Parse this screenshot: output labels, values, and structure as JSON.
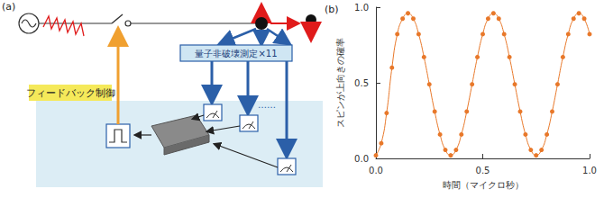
{
  "diagram": {
    "panel_label": "(a)",
    "feedback_label": "フィードバック制御",
    "measurement_label": "量子非破壊測定×11",
    "ellipsis": "……"
  },
  "chart_data": {
    "type": "line",
    "title": "(b)",
    "x_label": "時間（マイクロ秒）",
    "y_label": "スピンが上向きの確率",
    "x": [
      0,
      0.025,
      0.05,
      0.075,
      0.1,
      0.125,
      0.15,
      0.175,
      0.2,
      0.225,
      0.25,
      0.275,
      0.3,
      0.325,
      0.35,
      0.375,
      0.4,
      0.425,
      0.45,
      0.475,
      0.5,
      0.525,
      0.55,
      0.575,
      0.6,
      0.625,
      0.65,
      0.675,
      0.7,
      0.725,
      0.75,
      0.775,
      0.8,
      0.825,
      0.85,
      0.875,
      0.9,
      0.925,
      0.95,
      0.975,
      1
    ],
    "values": [
      0.02,
      0.1,
      0.3,
      0.6,
      0.822,
      0.924,
      0.96,
      0.924,
      0.822,
      0.67,
      0.49,
      0.31,
      0.158,
      0.056,
      0.02,
      0.056,
      0.158,
      0.31,
      0.49,
      0.67,
      0.822,
      0.924,
      0.96,
      0.924,
      0.822,
      0.67,
      0.49,
      0.31,
      0.158,
      0.056,
      0.02,
      0.056,
      0.158,
      0.31,
      0.49,
      0.67,
      0.822,
      0.924,
      0.96,
      0.924,
      0.822
    ],
    "color": "#e8782a",
    "marker": "circle",
    "xlim": [
      0,
      1
    ],
    "xticks": [
      {
        "value": 0,
        "label": "0.0"
      },
      {
        "value": 0.5,
        "label": "0.5"
      },
      {
        "value": 1,
        "label": "1.0"
      }
    ],
    "ylim": [
      0,
      1
    ],
    "yticks": [
      {
        "value": 0,
        "label": "0.0"
      },
      {
        "value": 0.5,
        "label": "0.5"
      },
      {
        "value": 1,
        "label": "1.0"
      }
    ],
    "grid": false
  }
}
